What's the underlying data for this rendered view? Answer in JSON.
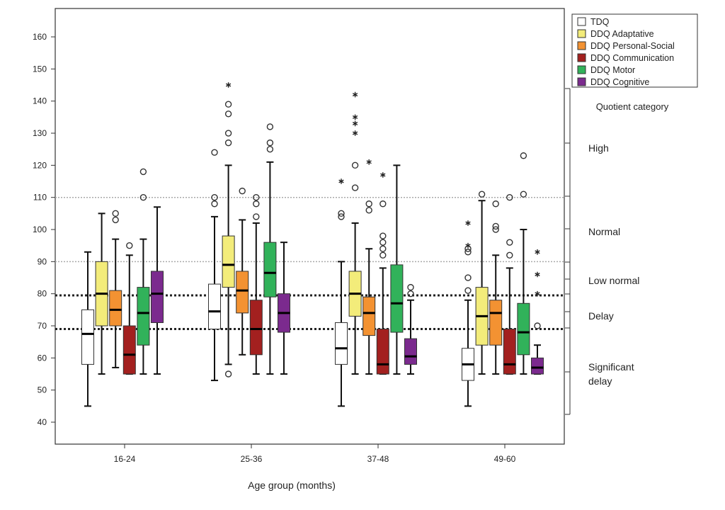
{
  "chart_data": {
    "type": "boxplot",
    "xlabel": "Age group (months)",
    "ylabel": "",
    "ylim": [
      35,
      168
    ],
    "yticks": [
      40,
      50,
      60,
      70,
      80,
      90,
      100,
      110,
      120,
      130,
      140,
      150,
      160
    ],
    "categories": [
      "16-24",
      "25-36",
      "37-48",
      "49-60"
    ],
    "legend_position": "top-right-outside",
    "series": [
      {
        "name": "TDQ",
        "color": "#ffffff",
        "boxes": [
          {
            "whislo": 45,
            "q1": 58,
            "med": 67.5,
            "q3": 75,
            "whishi": 93,
            "outliers": [],
            "extremes": []
          },
          {
            "whislo": 53,
            "q1": 69,
            "med": 74.5,
            "q3": 83,
            "whishi": 104,
            "outliers": [
              108,
              110,
              124
            ],
            "extremes": []
          },
          {
            "whislo": 45,
            "q1": 58,
            "med": 63,
            "q3": 71,
            "whishi": 90,
            "outliers": [
              104,
              105
            ],
            "extremes": [
              115
            ]
          },
          {
            "whislo": 45,
            "q1": 53,
            "med": 58,
            "q3": 63,
            "whishi": 78,
            "outliers": [
              81,
              85,
              93,
              94
            ],
            "extremes": [
              95,
              102
            ]
          }
        ]
      },
      {
        "name": "DDQ Adaptative",
        "color": "#f3ec7a",
        "boxes": [
          {
            "whislo": 55,
            "q1": 70,
            "med": 80,
            "q3": 90,
            "whishi": 105,
            "outliers": [],
            "extremes": []
          },
          {
            "whislo": 58,
            "q1": 82,
            "med": 89,
            "q3": 98,
            "whishi": 120,
            "outliers": [
              55,
              127,
              130,
              136,
              139
            ],
            "extremes": [
              145
            ]
          },
          {
            "whislo": 55,
            "q1": 73,
            "med": 80,
            "q3": 87,
            "whishi": 102,
            "outliers": [
              113,
              120
            ],
            "extremes": [
              130,
              133,
              135,
              142
            ]
          },
          {
            "whislo": 55,
            "q1": 64,
            "med": 73,
            "q3": 82,
            "whishi": 109,
            "outliers": [
              111
            ],
            "extremes": []
          }
        ]
      },
      {
        "name": "DDQ Personal-Social",
        "color": "#f39232",
        "boxes": [
          {
            "whislo": 57,
            "q1": 70,
            "med": 75,
            "q3": 81,
            "whishi": 97,
            "outliers": [
              103,
              105
            ],
            "extremes": []
          },
          {
            "whislo": 61,
            "q1": 74,
            "med": 81,
            "q3": 87,
            "whishi": 103,
            "outliers": [
              112
            ],
            "extremes": []
          },
          {
            "whislo": 55,
            "q1": 67,
            "med": 74,
            "q3": 79,
            "whishi": 94,
            "outliers": [
              106,
              108
            ],
            "extremes": [
              121
            ]
          },
          {
            "whislo": 55,
            "q1": 64,
            "med": 74,
            "q3": 78,
            "whishi": 92,
            "outliers": [
              100,
              101,
              108
            ],
            "extremes": []
          }
        ]
      },
      {
        "name": "DDQ Communication",
        "color": "#a3201f",
        "boxes": [
          {
            "whislo": 55,
            "q1": 55,
            "med": 61,
            "q3": 70,
            "whishi": 92,
            "outliers": [
              95
            ],
            "extremes": []
          },
          {
            "whislo": 55,
            "q1": 61,
            "med": 69,
            "q3": 78,
            "whishi": 102,
            "outliers": [
              104,
              108,
              110
            ],
            "extremes": []
          },
          {
            "whislo": 55,
            "q1": 55,
            "med": 58,
            "q3": 69,
            "whishi": 88,
            "outliers": [
              92,
              94,
              96,
              98,
              108
            ],
            "extremes": [
              117
            ]
          },
          {
            "whislo": 55,
            "q1": 55,
            "med": 58,
            "q3": 69,
            "whishi": 88,
            "outliers": [
              92,
              96,
              110
            ],
            "extremes": []
          }
        ]
      },
      {
        "name": "DDQ Motor",
        "color": "#31b25a",
        "boxes": [
          {
            "whislo": 55,
            "q1": 64,
            "med": 74,
            "q3": 82,
            "whishi": 97,
            "outliers": [
              110,
              118
            ],
            "extremes": []
          },
          {
            "whislo": 55,
            "q1": 79,
            "med": 86.5,
            "q3": 96,
            "whishi": 121,
            "outliers": [
              125,
              127,
              132
            ],
            "extremes": []
          },
          {
            "whislo": 55,
            "q1": 68,
            "med": 77,
            "q3": 89,
            "whishi": 120,
            "outliers": [],
            "extremes": []
          },
          {
            "whislo": 55,
            "q1": 61,
            "med": 68,
            "q3": 77,
            "whishi": 100,
            "outliers": [
              111,
              123
            ],
            "extremes": []
          }
        ]
      },
      {
        "name": "DDQ Cognitive",
        "color": "#7b2a8e",
        "boxes": [
          {
            "whislo": 55,
            "q1": 71,
            "med": 80,
            "q3": 87,
            "whishi": 107,
            "outliers": [],
            "extremes": []
          },
          {
            "whislo": 55,
            "q1": 68,
            "med": 74,
            "q3": 80,
            "whishi": 96,
            "outliers": [],
            "extremes": []
          },
          {
            "whislo": 55,
            "q1": 58,
            "med": 60.5,
            "q3": 66,
            "whishi": 78,
            "outliers": [
              80,
              82
            ],
            "extremes": []
          },
          {
            "whislo": 55,
            "q1": 55,
            "med": 57,
            "q3": 60,
            "whishi": 64,
            "outliers": [
              70
            ],
            "extremes": [
              80,
              86,
              93
            ]
          }
        ]
      }
    ],
    "reference_lines": [
      {
        "value": 110,
        "style": "light-dotted"
      },
      {
        "value": 90,
        "style": "light-dotted"
      },
      {
        "value": 79.5,
        "style": "bold-dotted"
      },
      {
        "value": 69,
        "style": "bold-dotted"
      }
    ],
    "quotient_category": {
      "title": "Quotient category",
      "labels": [
        "High",
        "Normal",
        "Low normal",
        "Delay",
        "Significant delay"
      ]
    }
  }
}
